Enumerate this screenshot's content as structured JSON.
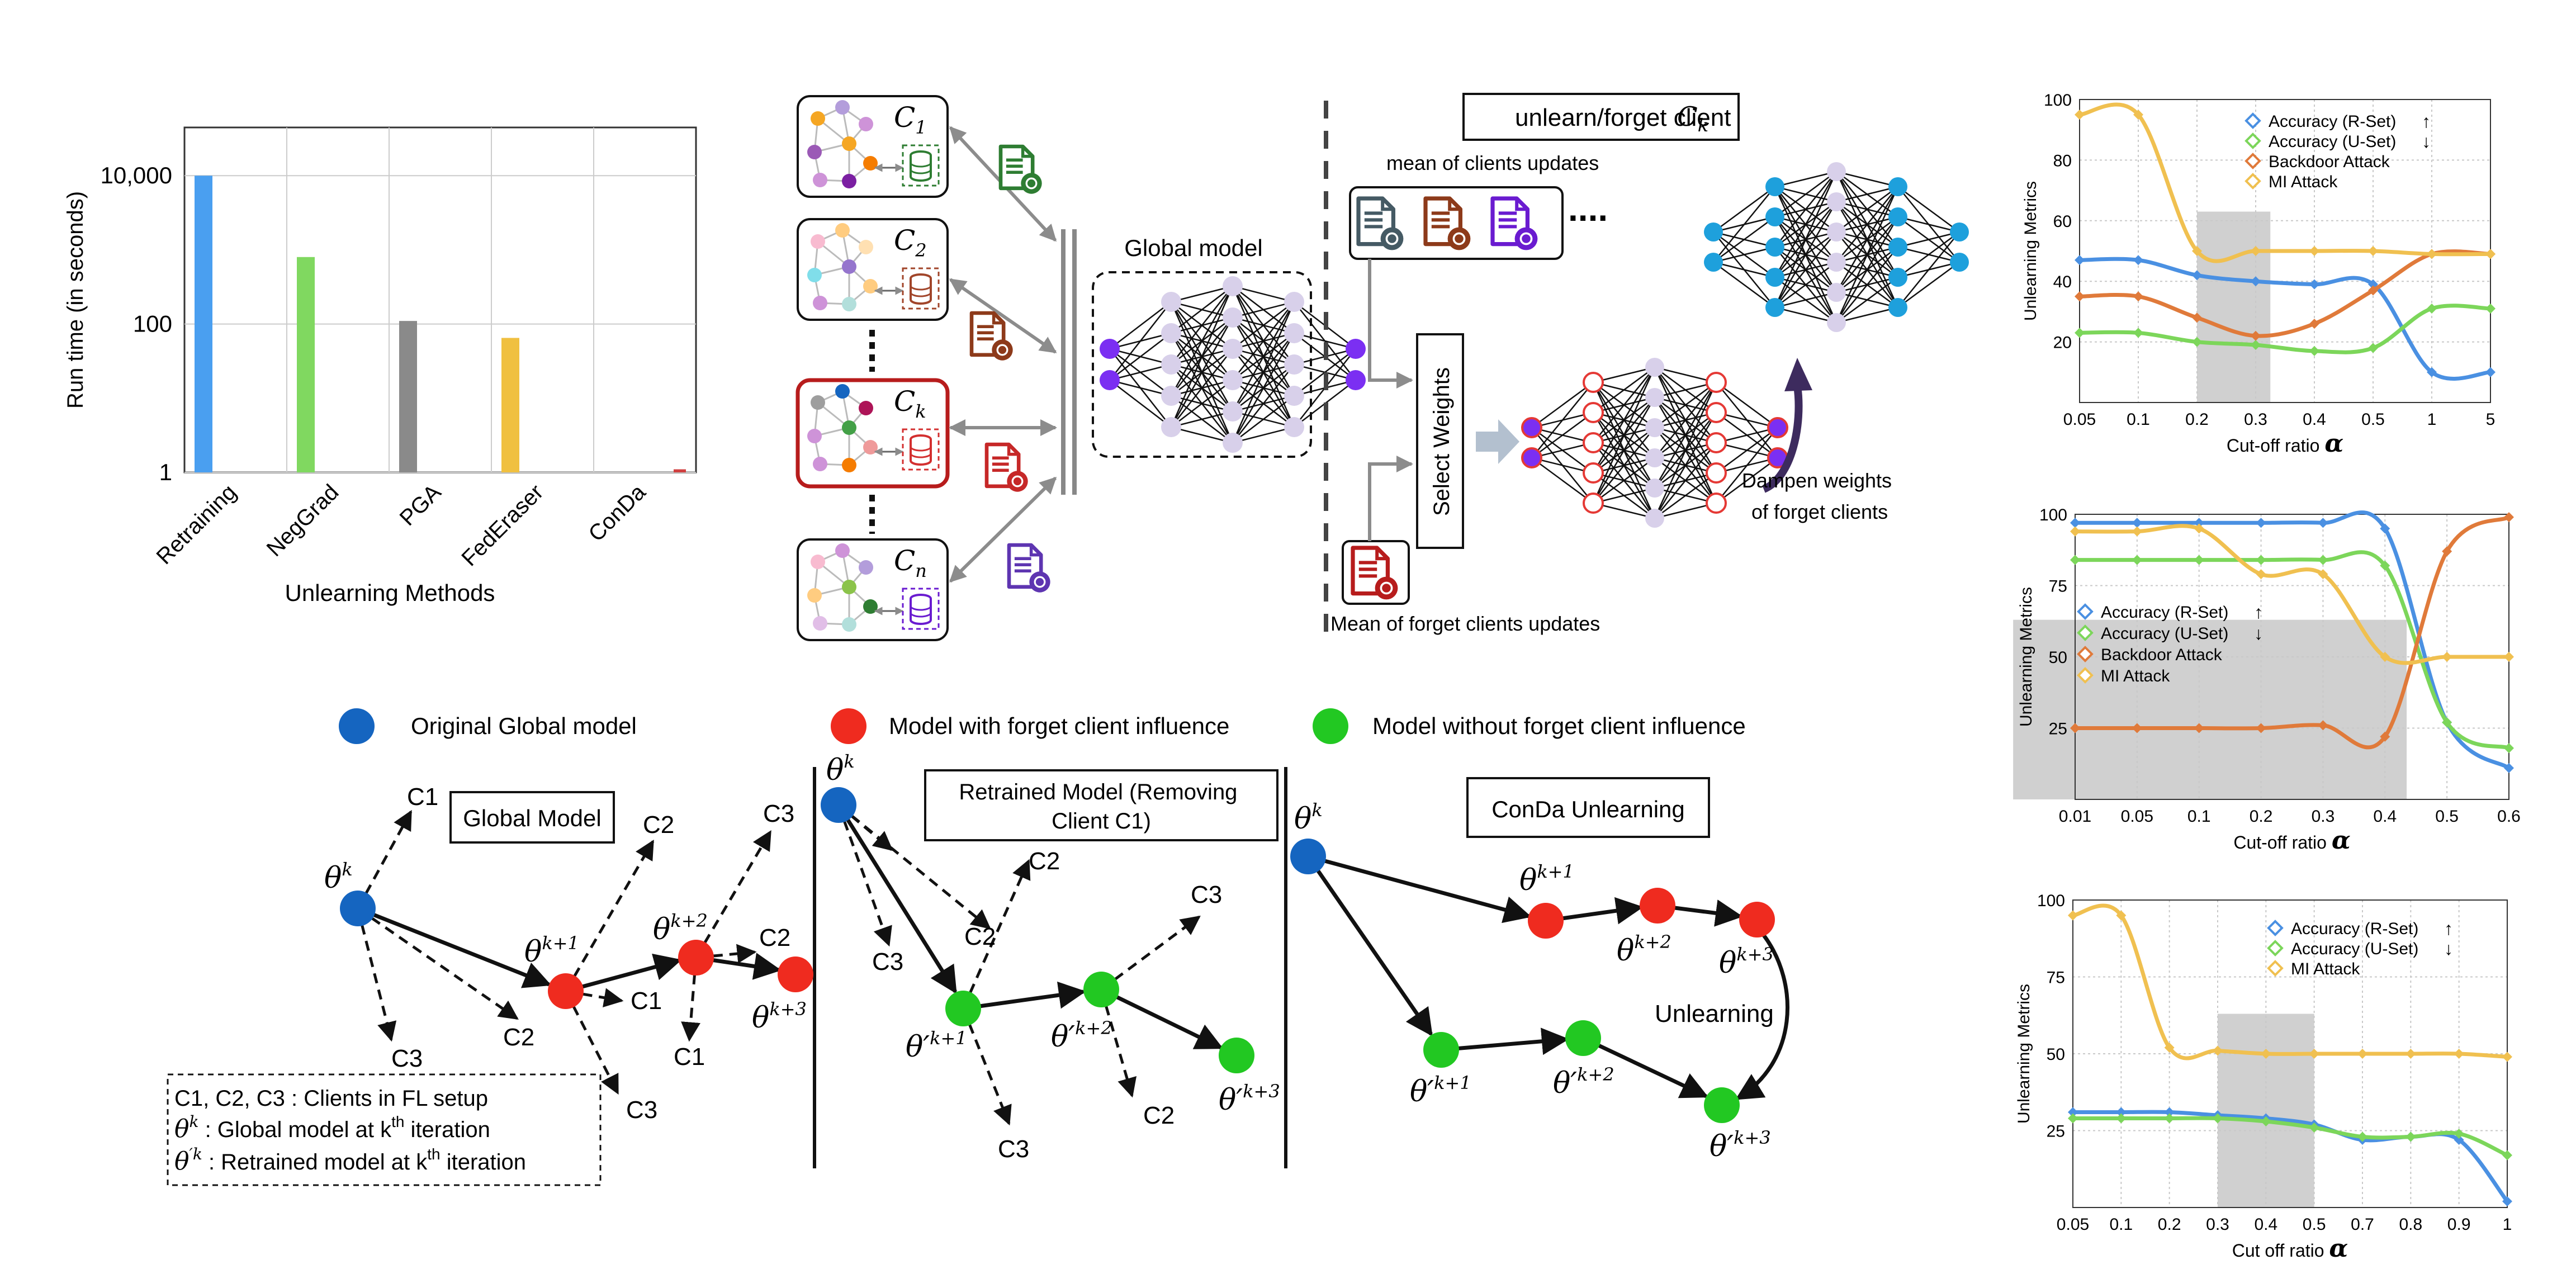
{
  "bar_chart": {
    "type": "bar",
    "ylabel": "Run time (in seconds)",
    "xlabel": "Unlearning Methods",
    "yscale": "log",
    "yticks": [
      "1",
      "100",
      "10,000"
    ],
    "categories": [
      "Retraining",
      "NegGrad",
      "PGA",
      "FedEraser",
      "ConDa"
    ],
    "values": [
      10000,
      800,
      110,
      65,
      1.1
    ],
    "colors": [
      "#4a9ff0",
      "#80d860",
      "#8a8a8a",
      "#f0c040",
      "#d04040"
    ]
  },
  "fl": {
    "clients": [
      "C1",
      "C2",
      "Ck",
      "Cn"
    ],
    "client_labels": [
      "C",
      "C",
      "C",
      "C"
    ],
    "client_subs": [
      "1",
      "2",
      "k",
      "n"
    ],
    "global_model": "Global model",
    "unlearn_title": "unlearn/forget client",
    "unlearn_var": "C",
    "unlearn_sub": "k",
    "mean_clients": "mean of clients updates",
    "select_weights": "Select Weights",
    "mean_forget": "Mean of forget clients updates",
    "dampen": [
      "Dampen weights",
      "of forget clients"
    ],
    "doc_colors": [
      "#2e7d32",
      "#8d3a1a",
      "#c62828",
      "#5e35b1"
    ],
    "update_colors": [
      "#455a64",
      "#8d3a1a",
      "#6a1bd0"
    ]
  },
  "legend": {
    "items": [
      {
        "label": "Original Global model",
        "color": "#1565c0"
      },
      {
        "label": "Model with forget client influence",
        "color": "#ef2b1f"
      },
      {
        "label": "Model without forget client influence",
        "color": "#22c822"
      }
    ]
  },
  "traj": {
    "box1": "Global Model",
    "box2": [
      "Retrained Model (Removing",
      "Client C1)"
    ],
    "box3": "ConDa Unlearning",
    "unlearning": "Unlearning",
    "clients": [
      "C1",
      "C2",
      "C3"
    ],
    "notes": {
      "line1": "C1, C2, C3 : Clients in FL setup",
      "line2a": " : Global model at k",
      "line2sup": "th",
      "line2b": " iteration",
      "line3a": " : Retrained model at k",
      "line3sup": "th",
      "line3b": " iteration"
    },
    "theta": "θ",
    "theta_p": "θ′"
  },
  "chart_data": [
    {
      "type": "line",
      "ylabel": "Unlearning Metrics",
      "xlabel": "Cut-off ratio",
      "xvar": "α",
      "categories": [
        "0.05",
        "0.1",
        "0.2",
        "0.3",
        "0.4",
        "0.5",
        "1",
        "5"
      ],
      "yticks": [
        20,
        40,
        60,
        80,
        100
      ],
      "ylim": [
        0,
        100
      ],
      "shade": [
        "0.2",
        "0.3"
      ],
      "series": [
        {
          "name": "Accuracy (R-Set)",
          "arrow": "↑",
          "color": "#4a90e2",
          "values": [
            47,
            47,
            42,
            40,
            39,
            39,
            10,
            10
          ]
        },
        {
          "name": "Accuracy (U-Set)",
          "arrow": "↓",
          "color": "#7cd65a",
          "values": [
            23,
            23,
            20,
            19,
            17,
            18,
            31,
            31
          ]
        },
        {
          "name": "Backdoor Attack",
          "arrow": "",
          "color": "#e07a3a",
          "values": [
            35,
            35,
            28,
            22,
            26,
            37,
            49,
            49
          ]
        },
        {
          "name": "MI Attack",
          "arrow": "",
          "color": "#f0c050",
          "values": [
            95,
            95,
            50,
            50,
            50,
            50,
            49,
            49
          ]
        }
      ]
    },
    {
      "type": "line",
      "ylabel": "Unlearning Metrics",
      "xlabel": "Cut-off ratio",
      "xvar": "α",
      "categories": [
        "0.01",
        "0.05",
        "0.1",
        "0.2",
        "0.3",
        "0.4",
        "0.5",
        "0.6"
      ],
      "yticks": [
        25,
        50,
        75,
        100
      ],
      "ylim": [
        0,
        100
      ],
      "shade": [
        "0.35",
        "0.4"
      ],
      "series": [
        {
          "name": "Accuracy (R-Set)",
          "arrow": "↑",
          "color": "#4a90e2",
          "values": [
            97,
            97,
            97,
            97,
            97,
            95,
            27,
            11
          ]
        },
        {
          "name": "Accuracy (U-Set)",
          "arrow": "↓",
          "color": "#7cd65a",
          "values": [
            84,
            84,
            84,
            84,
            84,
            82,
            27,
            18
          ]
        },
        {
          "name": "Backdoor Attack",
          "arrow": "",
          "color": "#e07a3a",
          "values": [
            25,
            25,
            25,
            25,
            26,
            22,
            87,
            99
          ]
        },
        {
          "name": "MI Attack",
          "arrow": "",
          "color": "#f0c050",
          "values": [
            94,
            94,
            95,
            79,
            79,
            50,
            50,
            50
          ]
        }
      ]
    },
    {
      "type": "line",
      "ylabel": "Unlearning Metrics",
      "xlabel": "Cut off ratio",
      "xvar": "α",
      "categories": [
        "0.05",
        "0.1",
        "0.2",
        "0.3",
        "0.4",
        "0.5",
        "0.7",
        "0.8",
        "0.9",
        "1"
      ],
      "yticks": [
        25,
        50,
        75,
        100
      ],
      "ylim": [
        0,
        100
      ],
      "shade": [
        "0.3",
        "0.5"
      ],
      "series": [
        {
          "name": "Accuracy (R-Set)",
          "arrow": "↑",
          "color": "#4a90e2",
          "values": [
            31,
            31,
            31,
            30,
            29,
            27,
            22,
            23,
            22,
            2
          ]
        },
        {
          "name": "Accuracy (U-Set)",
          "arrow": "↓",
          "color": "#7cd65a",
          "values": [
            29,
            29,
            29,
            29,
            28,
            26,
            23,
            23,
            24,
            17
          ]
        },
        {
          "name": "MI Attack",
          "arrow": "",
          "color": "#f0c050",
          "values": [
            95,
            95,
            52,
            51,
            50,
            50,
            50,
            50,
            50,
            49
          ]
        }
      ]
    }
  ]
}
